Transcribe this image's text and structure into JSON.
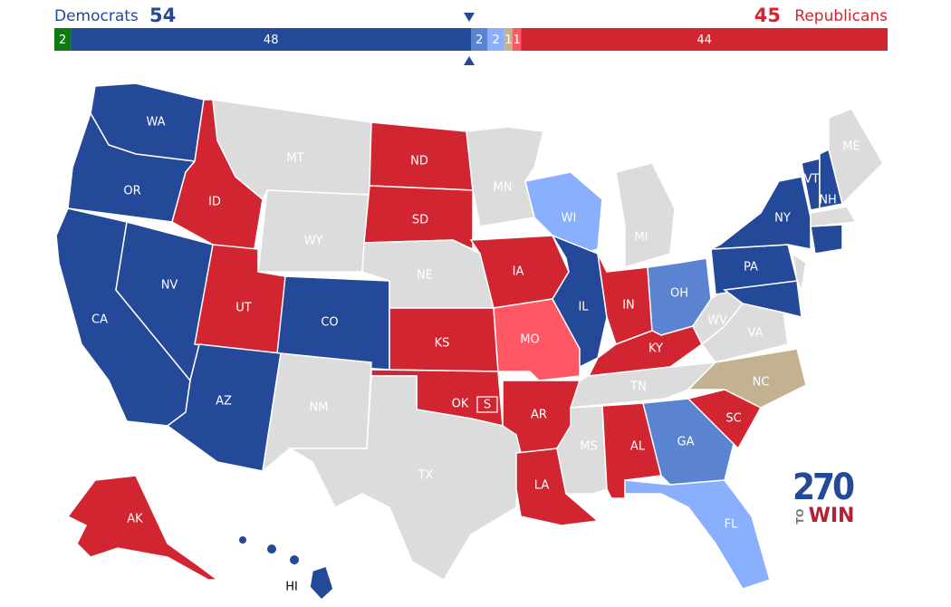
{
  "seat_bar": {
    "democrats_label": "Democrats",
    "democrats_total": 54,
    "republicans_total": 45,
    "republicans_label": "Republicans",
    "segments": [
      {
        "value": 2,
        "color": "#0f7a0f"
      },
      {
        "value": 48,
        "color": "#244999"
      },
      {
        "value": 2,
        "color": "#5a83d2"
      },
      {
        "value": 2,
        "color": "#8aaffe"
      },
      {
        "value": 1,
        "color": "#c2b28f"
      },
      {
        "value": 1,
        "color": "#ff5865"
      },
      {
        "value": 44,
        "color": "#d22532"
      }
    ]
  },
  "states": [
    {
      "label": "WA",
      "color": "#244999"
    },
    {
      "label": "OR",
      "color": "#244999"
    },
    {
      "label": "CA",
      "color": "#244999"
    },
    {
      "label": "NV",
      "color": "#244999"
    },
    {
      "label": "ID",
      "color": "#d22532"
    },
    {
      "label": "MT",
      "color": "#dcdcdc"
    },
    {
      "label": "WY",
      "color": "#dcdcdc"
    },
    {
      "label": "UT",
      "color": "#d22532"
    },
    {
      "label": "CO",
      "color": "#244999"
    },
    {
      "label": "AZ",
      "color": "#244999"
    },
    {
      "label": "NM",
      "color": "#dcdcdc"
    },
    {
      "label": "ND",
      "color": "#d22532"
    },
    {
      "label": "SD",
      "color": "#d22532"
    },
    {
      "label": "NE",
      "color": "#dcdcdc"
    },
    {
      "label": "KS",
      "color": "#d22532"
    },
    {
      "label": "OK",
      "color": "#d22532"
    },
    {
      "label": "TX",
      "color": "#dcdcdc"
    },
    {
      "label": "MN",
      "color": "#dcdcdc"
    },
    {
      "label": "IA",
      "color": "#d22532"
    },
    {
      "label": "MO",
      "color": "#ff5865"
    },
    {
      "label": "AR",
      "color": "#d22532"
    },
    {
      "label": "LA",
      "color": "#d22532"
    },
    {
      "label": "WI",
      "color": "#8aaffe"
    },
    {
      "label": "IL",
      "color": "#244999"
    },
    {
      "label": "MI",
      "color": "#dcdcdc"
    },
    {
      "label": "IN",
      "color": "#d22532"
    },
    {
      "label": "OH",
      "color": "#5a83d2"
    },
    {
      "label": "KY",
      "color": "#d22532"
    },
    {
      "label": "TN",
      "color": "#dcdcdc"
    },
    {
      "label": "MS",
      "color": "#dcdcdc"
    },
    {
      "label": "AL",
      "color": "#d22532"
    },
    {
      "label": "GA",
      "color": "#5a83d2"
    },
    {
      "label": "FL",
      "color": "#8aaffe"
    },
    {
      "label": "SC",
      "color": "#d22532"
    },
    {
      "label": "NC",
      "color": "#c2b28f"
    },
    {
      "label": "VA",
      "color": "#dcdcdc"
    },
    {
      "label": "WV",
      "color": "#dcdcdc"
    },
    {
      "label": "PA",
      "color": "#244999"
    },
    {
      "label": "NY",
      "color": "#244999"
    },
    {
      "label": "VT",
      "color": "#244999"
    },
    {
      "label": "NH",
      "color": "#244999"
    },
    {
      "label": "ME",
      "color": "#dcdcdc"
    },
    {
      "label": "AK",
      "color": "#d22532"
    },
    {
      "label": "HI",
      "color": "#244999"
    }
  ],
  "special_marker": "S",
  "logo": {
    "top": "270",
    "side": "TO",
    "bottom": "WIN"
  }
}
